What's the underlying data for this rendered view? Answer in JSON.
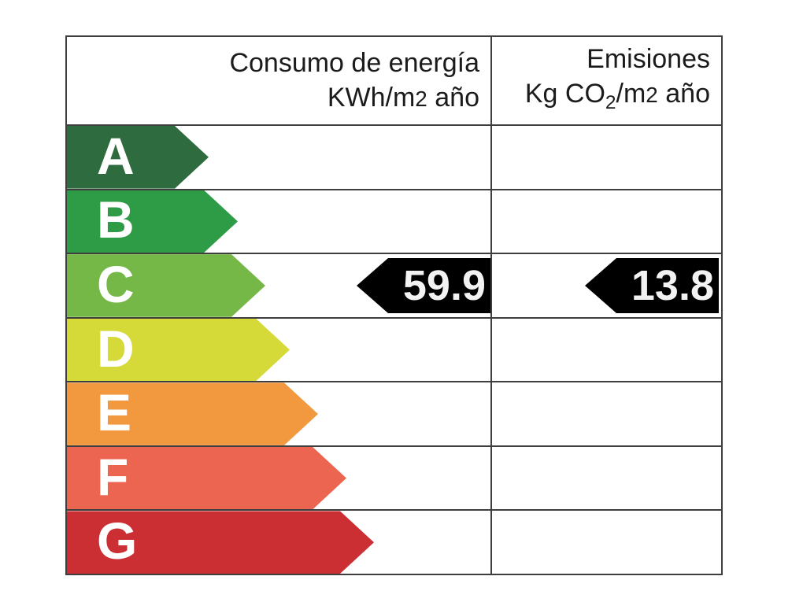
{
  "columns": [
    {
      "title": "Consumo de energía",
      "unit_parts": [
        {
          "t": "KWh/m"
        },
        {
          "t": "2",
          "style": "num"
        },
        {
          "t": " año"
        }
      ]
    },
    {
      "title": "Emisiones",
      "unit_parts": [
        {
          "t": "Kg CO"
        },
        {
          "t": "2",
          "style": "sub"
        },
        {
          "t": "/m"
        },
        {
          "t": "2",
          "style": "num"
        },
        {
          "t": " año"
        }
      ]
    }
  ],
  "ratings": [
    {
      "letter": "A",
      "color": "#2e6b3e",
      "arrow_width": 180
    },
    {
      "letter": "B",
      "color": "#2e9b47",
      "arrow_width": 217
    },
    {
      "letter": "C",
      "color": "#76b847",
      "arrow_width": 252
    },
    {
      "letter": "D",
      "color": "#d6da38",
      "arrow_width": 283
    },
    {
      "letter": "E",
      "color": "#f2993f",
      "arrow_width": 319
    },
    {
      "letter": "F",
      "color": "#eb6550",
      "arrow_width": 355
    },
    {
      "letter": "G",
      "color": "#cc2f33",
      "arrow_width": 390
    }
  ],
  "result": {
    "rating": "C",
    "consumption_value": "59.9",
    "emissions_value": "13.8",
    "marker_color": "#000000",
    "marker_text_color": "#f2f2f2"
  },
  "chart_data": {
    "type": "table",
    "title": "Etiqueta de eficiencia energética",
    "columns": [
      "Consumo de energía KWh/m2 año",
      "Emisiones Kg CO2/m2 año"
    ],
    "categories": [
      "A",
      "B",
      "C",
      "D",
      "E",
      "F",
      "G"
    ],
    "selected_rating": "C",
    "values": {
      "consumo_energia_kwh_m2_ano": 59.9,
      "emisiones_kg_co2_m2_ano": 13.8
    },
    "scale_colors": {
      "A": "#2e6b3e",
      "B": "#2e9b47",
      "C": "#76b847",
      "D": "#d6da38",
      "E": "#f2993f",
      "F": "#eb6550",
      "G": "#cc2f33"
    },
    "legend_position": "none",
    "grid": true
  }
}
